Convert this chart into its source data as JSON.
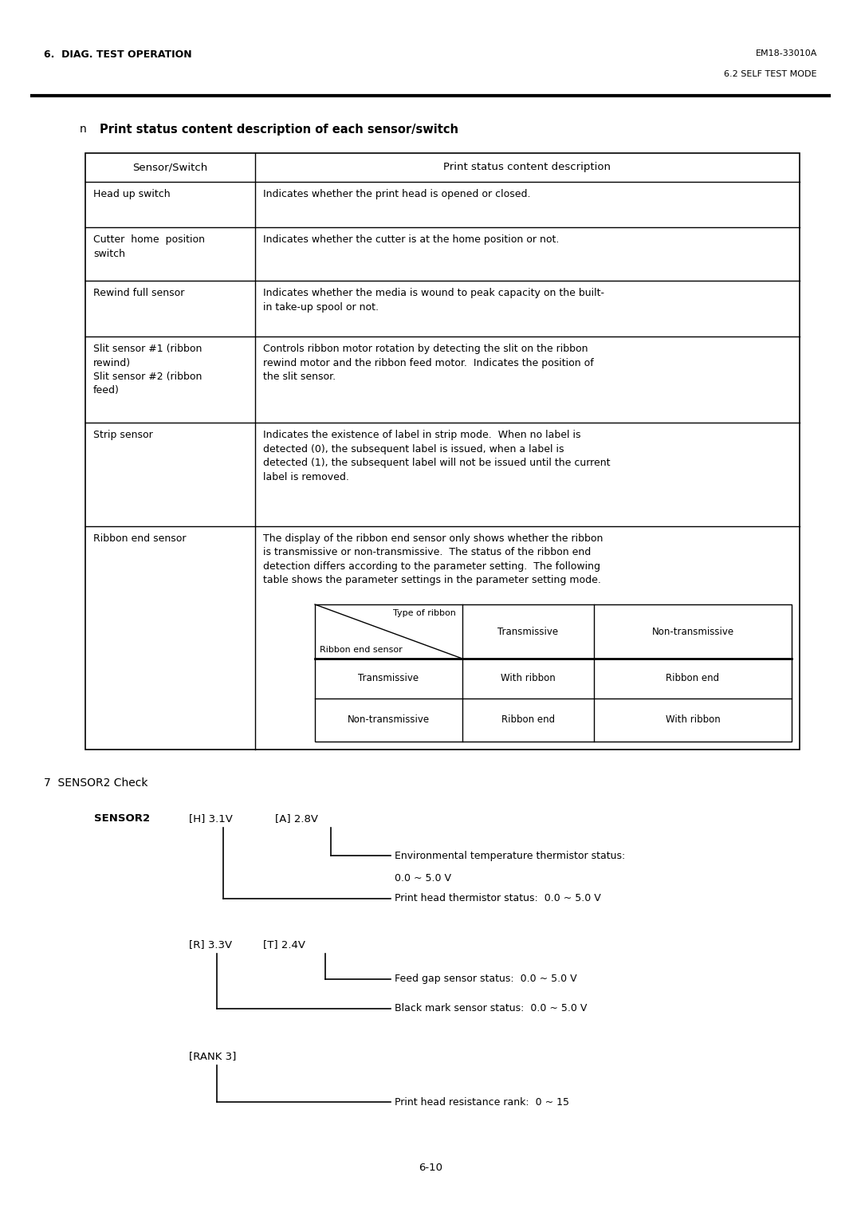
{
  "header_left": "6.  DIAG. TEST OPERATION",
  "header_right_top": "EM18-33010A",
  "header_right_bottom": "6.2 SELF TEST MODE",
  "section_title": "Print status content description of each sensor/switch",
  "table_headers": [
    "Sensor/Switch",
    "Print status content description"
  ],
  "table_rows": [
    [
      "Head up switch",
      "Indicates whether the print head is opened or closed."
    ],
    [
      "Cutter  home  position\nswitch",
      "Indicates whether the cutter is at the home position or not."
    ],
    [
      "Rewind full sensor",
      "Indicates whether the media is wound to peak capacity on the built-\nin take-up spool or not."
    ],
    [
      "Slit sensor #1 (ribbon\nrewind)\nSlit sensor #2 (ribbon\nfeed)",
      "Controls ribbon motor rotation by detecting the slit on the ribbon\nrewind motor and the ribbon feed motor.  Indicates the position of\nthe slit sensor."
    ],
    [
      "Strip sensor",
      "Indicates the existence of label in strip mode.  When no label is\ndetected (0), the subsequent label is issued, when a label is\ndetected (1), the subsequent label will not be issued until the current\nlabel is removed."
    ],
    [
      "Ribbon end sensor",
      "The display of the ribbon end sensor only shows whether the ribbon\nis transmissive or non-transmissive.  The status of the ribbon end\ndetection differs according to the parameter setting.  The following\ntable shows the parameter settings in the parameter setting mode."
    ]
  ],
  "inner_table_diag_top": "Type of ribbon",
  "inner_table_diag_bottom": "Ribbon end sensor",
  "inner_table_col_headers": [
    "Transmissive",
    "Non-transmissive"
  ],
  "inner_table_rows": [
    [
      "Transmissive",
      "With ribbon",
      "Ribbon end"
    ],
    [
      "Non-transmissive",
      "Ribbon end",
      "With ribbon"
    ]
  ],
  "section7_title": "7  SENSOR2 Check",
  "sensor2_label": "SENSOR2",
  "sensor2_h": "[H] 3.1V",
  "sensor2_a": "[A] 2.8V",
  "sensor2_r": "[R] 3.3V",
  "sensor2_t": "[T] 2.4V",
  "sensor2_rank": "[RANK 3]",
  "desc1": "Environmental temperature thermistor status:",
  "desc1b": "0.0 ~ 5.0 V",
  "desc2": "Print head thermistor status:  0.0 ~ 5.0 V",
  "desc3": "Feed gap sensor status:  0.0 ~ 5.0 V",
  "desc4": "Black mark sensor status:  0.0 ~ 5.0 V",
  "desc5": "Print head resistance rank:  0 ~ 15",
  "page_number": "6-10",
  "bg_color": "#ffffff",
  "text_color": "#000000"
}
